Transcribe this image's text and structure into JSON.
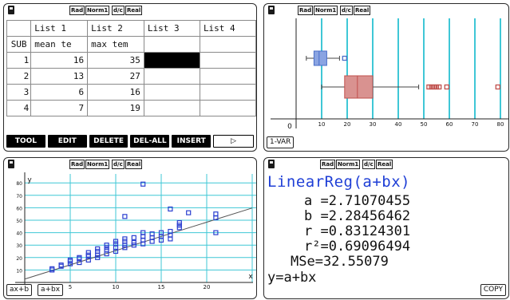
{
  "status": {
    "angle": "Rad",
    "mode": "Norm1",
    "format": "d/c",
    "complex": "Real"
  },
  "list_editor": {
    "headers": [
      "List 1",
      "List 2",
      "List 3",
      "List 4"
    ],
    "sub_label": "SUB",
    "sub_values": [
      "mean te",
      "max tem",
      "",
      ""
    ],
    "rows": [
      {
        "index": "1",
        "values": [
          "16",
          "35",
          "",
          ""
        ]
      },
      {
        "index": "2",
        "values": [
          "13",
          "27",
          "",
          ""
        ]
      },
      {
        "index": "3",
        "values": [
          "6",
          "16",
          "",
          ""
        ]
      },
      {
        "index": "4",
        "values": [
          "7",
          "19",
          "",
          ""
        ]
      }
    ],
    "function_keys": [
      "TOOL",
      "EDIT",
      "DELETE",
      "DEL-ALL",
      "INSERT",
      "▷"
    ]
  },
  "boxplot": {
    "x_ticks": [
      "10",
      "20",
      "30",
      "40",
      "50",
      "60",
      "70",
      "80"
    ],
    "origin_label": "0",
    "function_key": "1-VAR",
    "box1": {
      "min": 4,
      "q1": 7,
      "median": 9,
      "q3": 12,
      "max": 17,
      "outliers": [
        19
      ]
    },
    "box2": {
      "min": 10,
      "q1": 19,
      "median": 24,
      "q3": 30,
      "max": 48,
      "outliers": [
        52,
        53,
        54,
        55,
        56,
        59,
        79
      ]
    },
    "colors": {
      "box1": "#4a6ec8",
      "box2": "#c0504d",
      "grid": "#3fc7d6"
    }
  },
  "scatter": {
    "x_axis_label": "x",
    "y_axis_label": "y",
    "origin_label": "0",
    "x_ticks": [
      "5",
      "10",
      "15",
      "20"
    ],
    "y_ticks": [
      "80",
      "70",
      "60",
      "50",
      "40",
      "30",
      "20",
      "10"
    ],
    "function_keys": [
      "ax+b",
      "a+bx"
    ]
  },
  "chart_data": {
    "type": "scatter",
    "title": "",
    "xlabel": "x",
    "ylabel": "y",
    "xlim": [
      0,
      25
    ],
    "ylim": [
      0,
      85
    ],
    "regression": {
      "a": 2.71070455,
      "b": 2.28456462
    },
    "points": [
      [
        3,
        10
      ],
      [
        3,
        11
      ],
      [
        4,
        13
      ],
      [
        4,
        14
      ],
      [
        5,
        15
      ],
      [
        5,
        17
      ],
      [
        5,
        18
      ],
      [
        6,
        16
      ],
      [
        6,
        19
      ],
      [
        6,
        20
      ],
      [
        7,
        18
      ],
      [
        7,
        21
      ],
      [
        7,
        22
      ],
      [
        7,
        24
      ],
      [
        8,
        20
      ],
      [
        8,
        22
      ],
      [
        8,
        25
      ],
      [
        8,
        27
      ],
      [
        9,
        23
      ],
      [
        9,
        26
      ],
      [
        9,
        28
      ],
      [
        9,
        30
      ],
      [
        10,
        25
      ],
      [
        10,
        28
      ],
      [
        10,
        31
      ],
      [
        10,
        33
      ],
      [
        11,
        28
      ],
      [
        11,
        30
      ],
      [
        11,
        33
      ],
      [
        11,
        35
      ],
      [
        11,
        53
      ],
      [
        12,
        30
      ],
      [
        12,
        32
      ],
      [
        12,
        36
      ],
      [
        13,
        31
      ],
      [
        13,
        34
      ],
      [
        13,
        37
      ],
      [
        13,
        40
      ],
      [
        13,
        79
      ],
      [
        14,
        33
      ],
      [
        14,
        36
      ],
      [
        14,
        39
      ],
      [
        15,
        34
      ],
      [
        15,
        37
      ],
      [
        15,
        40
      ],
      [
        16,
        35
      ],
      [
        16,
        38
      ],
      [
        16,
        41
      ],
      [
        16,
        59
      ],
      [
        17,
        44
      ],
      [
        17,
        46
      ],
      [
        17,
        48
      ],
      [
        18,
        56
      ],
      [
        21,
        40
      ],
      [
        21,
        52
      ],
      [
        21,
        55
      ]
    ]
  },
  "stats": {
    "title": "LinearReg(a+bx)",
    "lines": [
      "a =2.71070455",
      "b =2.28456462",
      "r =0.83124301",
      "r²=0.69096494",
      "MSe=32.55079"
    ],
    "formula": "y=a+bx",
    "function_key": "COPY"
  }
}
